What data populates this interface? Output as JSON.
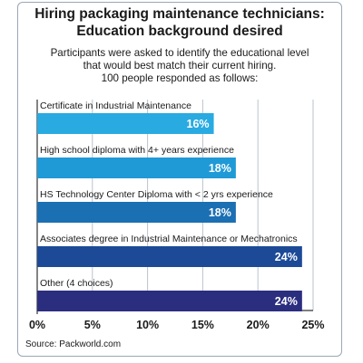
{
  "chart_data": {
    "type": "bar",
    "orientation": "horizontal",
    "title": "Hiring packaging maintenance technicians:\nEducation background desired",
    "subtitle": "Participants were asked to identify the educational level\nthat would best match their current hiring.\n100 people responded as follows:",
    "categories": [
      "Certificate in Industrial Maintenance",
      "High school diploma with 4+ years experience",
      "HS Technology Center Diploma with < 2 yrs experience",
      "Associates degree in Industrial Maintenance or Mechatronics",
      "Other (4 choices)"
    ],
    "values": [
      16,
      18,
      18,
      24,
      24
    ],
    "value_labels": [
      "16%",
      "18%",
      "18%",
      "24%",
      "24%"
    ],
    "bar_colors": [
      "#29aae1",
      "#1f9ad7",
      "#1b6fb3",
      "#1c4a97",
      "#2b2e7f"
    ],
    "xlim": [
      0,
      25
    ],
    "x_ticks": [
      0,
      5,
      10,
      15,
      20,
      25
    ],
    "x_tick_labels": [
      "0%",
      "5%",
      "10%",
      "15%",
      "20%",
      "25%"
    ],
    "grid": "vertical",
    "source": "Source: Packworld.com"
  }
}
